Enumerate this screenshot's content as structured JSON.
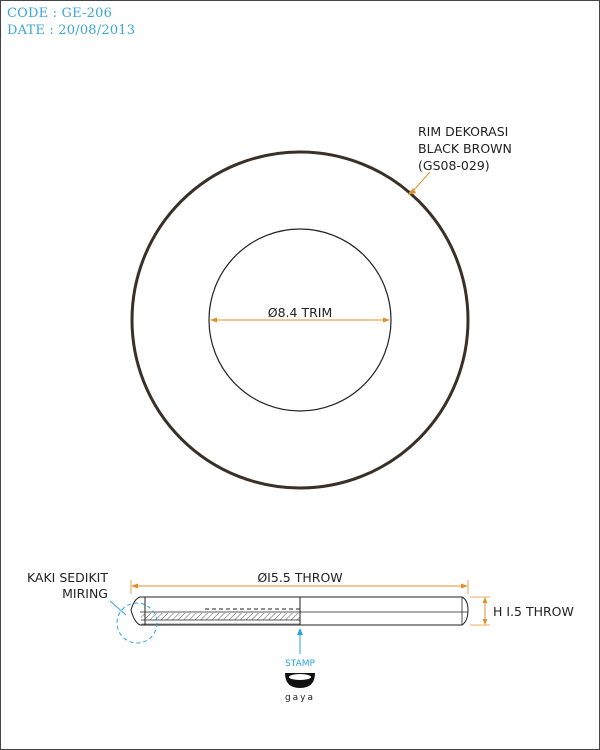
{
  "header": {
    "code": "CODE : GE-206",
    "date": "DATE : 20/08/2013"
  },
  "annotations": {
    "rim_line1": "RIM DEKORASI",
    "rim_line2": "BLACK BROWN",
    "rim_line3": "(GS08-029)",
    "trim_dimension": "Ø8.4 TRIM",
    "throw_dimension": "ØI5.5 THROW",
    "height_dimension": "H I.5 THROW",
    "kaki_line1": "KAKI SEDIKIT",
    "kaki_line2": "MIRING",
    "stamp_label": "STAMP",
    "brand": "gaya"
  },
  "colors": {
    "header_text": "#3aa6d8",
    "dimension_line": "#e0902a",
    "stamp_accent": "#2aa5e0",
    "outline": "#222222",
    "rim": "#3a3028"
  }
}
